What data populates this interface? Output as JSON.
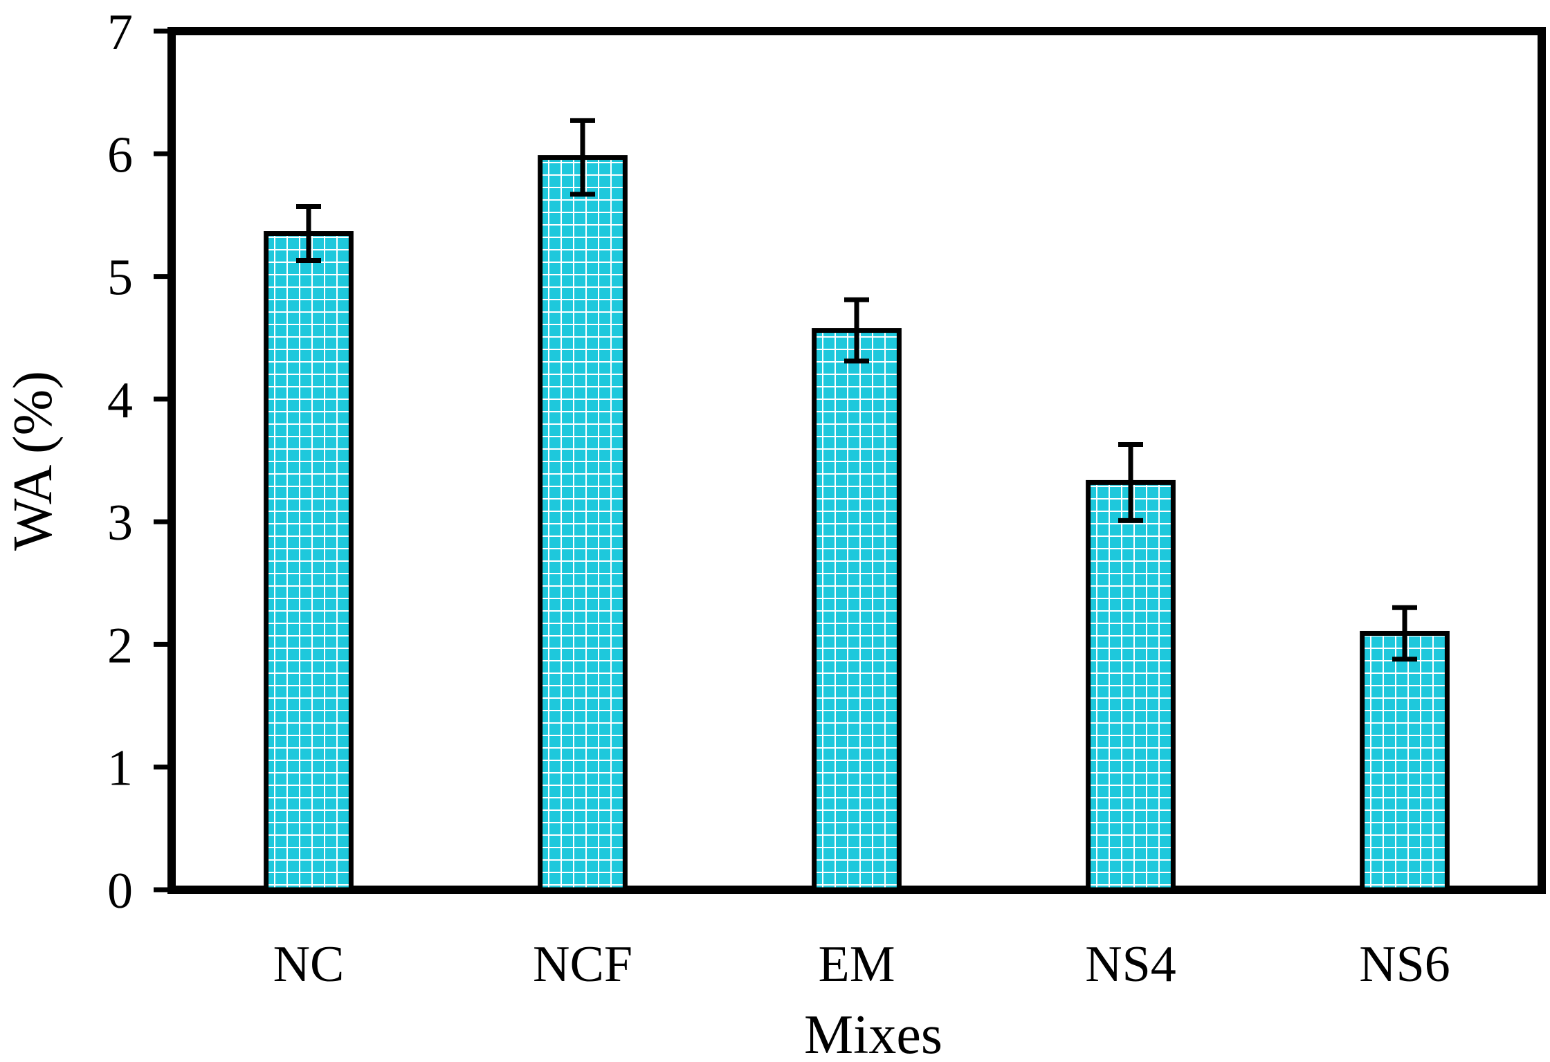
{
  "chart_data": {
    "type": "bar",
    "title": "",
    "xlabel": "Mixes",
    "ylabel": "WA (%)",
    "categories": [
      "NC",
      "NCF",
      "EM",
      "NS4",
      "NS6"
    ],
    "values": [
      5.35,
      5.97,
      4.56,
      3.32,
      2.09
    ],
    "error": [
      0.22,
      0.3,
      0.25,
      0.31,
      0.21
    ],
    "ylim": [
      0,
      7
    ],
    "yticks": [
      "0",
      "1",
      "2",
      "3",
      "4",
      "5",
      "6",
      "7"
    ],
    "grid": false,
    "legend": "none",
    "bar_fill_color": "#1ec8dc",
    "bar_pattern_color": "#ffffff",
    "bar_edge_color": "#000000"
  }
}
